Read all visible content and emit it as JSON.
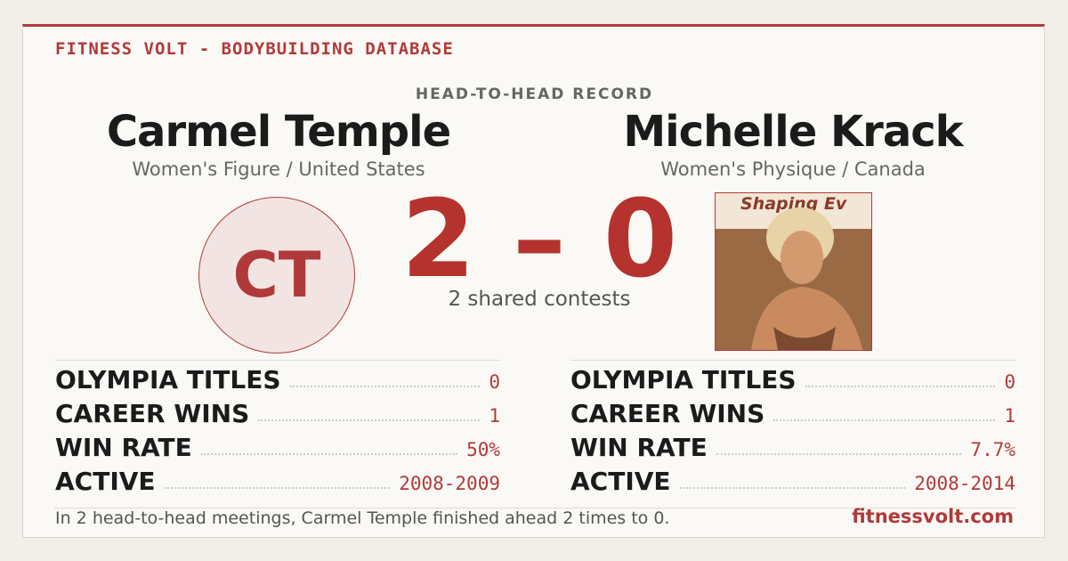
{
  "header": {
    "brand": "FITNESS VOLT - BODYBUILDING DATABASE",
    "record_label": "HEAD-TO-HEAD RECORD"
  },
  "left": {
    "name": "Carmel Temple",
    "division": "Women's Figure / United States",
    "initials": "CT",
    "stats": [
      {
        "label": "OLYMPIA TITLES",
        "value": "0"
      },
      {
        "label": "CAREER WINS",
        "value": "1"
      },
      {
        "label": "WIN RATE",
        "value": "50%"
      },
      {
        "label": "ACTIVE",
        "value": "2008-2009"
      }
    ]
  },
  "right": {
    "name": "Michelle Krack",
    "division": "Women's Physique / Canada",
    "photo_text": "Shaping Ev",
    "stats": [
      {
        "label": "OLYMPIA TITLES",
        "value": "0"
      },
      {
        "label": "CAREER WINS",
        "value": "1"
      },
      {
        "label": "WIN RATE",
        "value": "7.7%"
      },
      {
        "label": "ACTIVE",
        "value": "2008-2014"
      }
    ]
  },
  "score": {
    "left": "2",
    "separator": "–",
    "right": "0",
    "shared": "2 shared contests"
  },
  "footer": {
    "summary": "In 2 head-to-head meetings, Carmel Temple finished ahead 2 times to 0.",
    "site": "fitnessvolt.com"
  }
}
